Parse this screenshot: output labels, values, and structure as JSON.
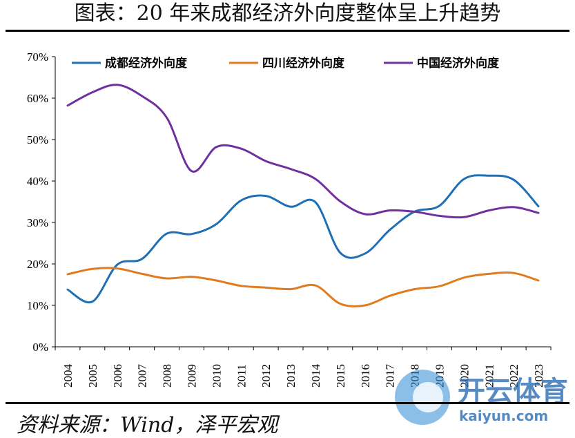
{
  "title": "图表：20 年来成都经济外向度整体呈上升趋势",
  "source": "资料来源：Wind，泽平宏观",
  "watermark": {
    "brand": "开云体育",
    "domain": "kaiyun.com"
  },
  "colors": {
    "chengdu": "#1f6fb5",
    "sichuan": "#e07b1f",
    "china": "#7030a0"
  },
  "chart_data": {
    "type": "line",
    "title": "",
    "xlabel": "",
    "ylabel": "",
    "ylim": [
      0,
      70
    ],
    "yticks": [
      "0%",
      "10%",
      "20%",
      "30%",
      "40%",
      "50%",
      "60%",
      "70%"
    ],
    "ytick_values": [
      0,
      10,
      20,
      30,
      40,
      50,
      60,
      70
    ],
    "x": [
      "2004",
      "2005",
      "2006",
      "2007",
      "2008",
      "2009",
      "2010",
      "2011",
      "2012",
      "2013",
      "2014",
      "2015",
      "2016",
      "2017",
      "2018",
      "2019",
      "2020",
      "2021",
      "2022",
      "2023"
    ],
    "legend_position": "top",
    "grid": false,
    "series": [
      {
        "name": "成都经济外向度",
        "color": "#1f6fb5",
        "values": [
          13.8,
          10.9,
          19.8,
          21.2,
          27.3,
          27.2,
          29.6,
          35.3,
          36.4,
          33.8,
          34.9,
          22.7,
          22.5,
          28.2,
          32.6,
          34.0,
          40.5,
          41.3,
          40.3,
          33.9
        ]
      },
      {
        "name": "四川经济外向度",
        "color": "#e07b1f",
        "values": [
          17.5,
          18.8,
          18.9,
          17.6,
          16.5,
          16.9,
          16.0,
          14.7,
          14.3,
          13.9,
          14.8,
          10.4,
          10.0,
          12.3,
          13.9,
          14.6,
          16.7,
          17.6,
          17.8,
          16.0
        ]
      },
      {
        "name": "中国经济外向度",
        "color": "#7030a0",
        "values": [
          58.2,
          61.4,
          63.2,
          60.5,
          55.3,
          42.4,
          48.2,
          47.8,
          44.8,
          42.9,
          40.5,
          35.1,
          32.0,
          32.9,
          32.6,
          31.6,
          31.3,
          32.9,
          33.7,
          32.3
        ]
      }
    ]
  }
}
